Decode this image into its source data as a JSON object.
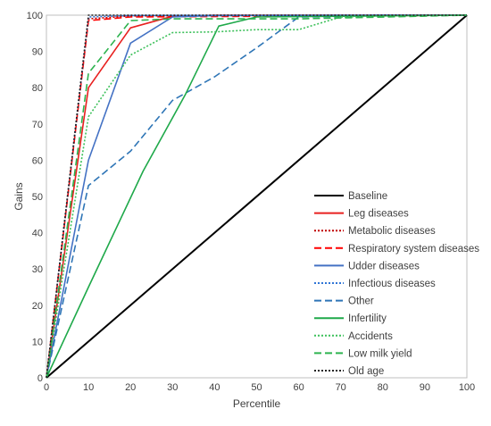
{
  "chart_data": {
    "type": "line",
    "title": "",
    "xlabel": "Percentile",
    "ylabel": "Gains",
    "xlim": [
      0,
      100
    ],
    "ylim": [
      0,
      100
    ],
    "xticks": [
      0,
      10,
      20,
      30,
      40,
      50,
      60,
      70,
      80,
      90,
      100
    ],
    "yticks": [
      0,
      10,
      20,
      30,
      40,
      50,
      60,
      70,
      80,
      90,
      100
    ],
    "grid": false,
    "legend_position": "right",
    "series": [
      {
        "name": "Baseline",
        "color": "#000000",
        "dash": "solid",
        "x": [
          0,
          100
        ],
        "y": [
          0,
          100
        ]
      },
      {
        "name": "Leg diseases",
        "color": "#e8201f",
        "dash": "solid",
        "x": [
          0,
          10,
          20,
          30,
          40,
          100
        ],
        "y": [
          0,
          80,
          96.5,
          99.7,
          100,
          100
        ]
      },
      {
        "name": "Metabolic diseases",
        "color": "#c00000",
        "dash": "dotted",
        "x": [
          0,
          10,
          20,
          100
        ],
        "y": [
          0,
          99,
          99.8,
          100
        ]
      },
      {
        "name": "Respiratory system diseases",
        "color": "#ff0000",
        "dash": "dashed",
        "x": [
          0,
          10,
          20,
          100
        ],
        "y": [
          0,
          98.5,
          99.5,
          100
        ]
      },
      {
        "name": "Udder diseases",
        "color": "#4472c4",
        "dash": "solid",
        "x": [
          0,
          10,
          20,
          30,
          40,
          100
        ],
        "y": [
          0,
          60,
          92.3,
          99.5,
          99.9,
          100
        ]
      },
      {
        "name": "Infectious diseases",
        "color": "#2f75d6",
        "dash": "dotted",
        "x": [
          0,
          10,
          20,
          100
        ],
        "y": [
          0,
          99.5,
          99.9,
          100
        ]
      },
      {
        "name": "Other",
        "color": "#2e75b6",
        "dash": "dashed",
        "x": [
          0,
          10,
          20,
          30,
          40,
          50,
          60,
          100
        ],
        "y": [
          0,
          53,
          62.5,
          76.5,
          83,
          91,
          99.5,
          100
        ]
      },
      {
        "name": "Infertility",
        "color": "#1fa94a",
        "dash": "solid",
        "x": [
          0,
          10,
          23,
          33,
          41,
          50,
          100
        ],
        "y": [
          0,
          25,
          57,
          78,
          97,
          99.5,
          100
        ]
      },
      {
        "name": "Accidents",
        "color": "#3cc05a",
        "dash": "dotted",
        "x": [
          0,
          10,
          20,
          30,
          40,
          50,
          60,
          70,
          80,
          100
        ],
        "y": [
          0,
          72,
          89,
          95.2,
          95.4,
          96,
          96,
          99.5,
          99.8,
          100
        ]
      },
      {
        "name": "Low milk yield",
        "color": "#2db34f",
        "dash": "dashed",
        "x": [
          0,
          10,
          20,
          30,
          40,
          60,
          100
        ],
        "y": [
          0,
          84,
          98.5,
          99,
          99,
          99,
          100
        ]
      },
      {
        "name": "Old age",
        "color": "#222222",
        "dash": "dotted",
        "x": [
          0,
          10,
          100
        ],
        "y": [
          0,
          100,
          100
        ]
      }
    ]
  }
}
